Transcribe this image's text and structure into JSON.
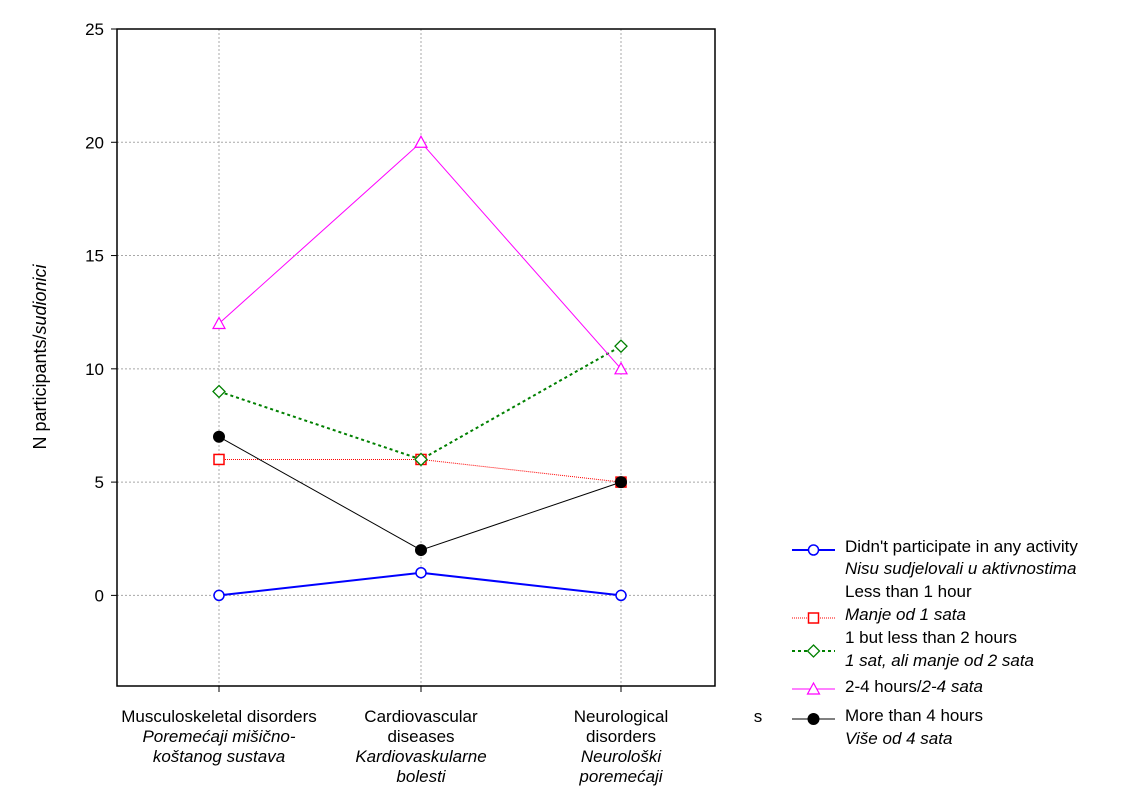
{
  "chart_data": {
    "type": "line",
    "ylabel": "N participants/",
    "ylabel_italic": "sudionici",
    "ylim": [
      -4,
      25
    ],
    "yticks": [
      0,
      5,
      10,
      15,
      20,
      25
    ],
    "grid": true,
    "legend_position": "bottom-right",
    "categories": [
      {
        "en": [
          "Musculoskeletal  disorders"
        ],
        "hr": [
          "Poremećaji mišično-",
          "koštanog sustava"
        ]
      },
      {
        "en": [
          "Cardiovascular",
          "diseases"
        ],
        "hr": [
          "Kardiovaskularne",
          "bolesti"
        ]
      },
      {
        "en": [
          "Neurological",
          "disorders"
        ],
        "hr": [
          "Neurološki",
          "poremećaji"
        ]
      }
    ],
    "series": [
      {
        "name": "Didn't participate in any activity",
        "name_hr": "Nisu sudjelovali u aktivnostima",
        "values": [
          0,
          1,
          0
        ],
        "color": "#0000ff",
        "marker": "circle",
        "dash": "",
        "width": 2
      },
      {
        "name": "Less than 1 hour",
        "name_hr": "Manje od 1 sata",
        "values": [
          6,
          6,
          5
        ],
        "color": "#ff0000",
        "marker": "square",
        "dash": "1,1",
        "width": 1
      },
      {
        "name": "1 but less than 2 hours",
        "name_hr": "1 sat, ali manje od 2 sata",
        "values": [
          9,
          6,
          11
        ],
        "color": "#008000",
        "marker": "diamond",
        "dash": "3,3",
        "width": 2
      },
      {
        "name": "2-4 hours/",
        "name_hr": "2-4 sata",
        "values": [
          12,
          20,
          10
        ],
        "color": "#ff00ff",
        "marker": "triangle",
        "dash": "",
        "width": 1
      },
      {
        "name": "More than 4 hours",
        "name_hr": "Više od 4 sata",
        "values": [
          7,
          2,
          5
        ],
        "color": "#000000",
        "marker": "filled-circle",
        "dash": "",
        "width": 1
      }
    ],
    "stray_label": "s"
  }
}
